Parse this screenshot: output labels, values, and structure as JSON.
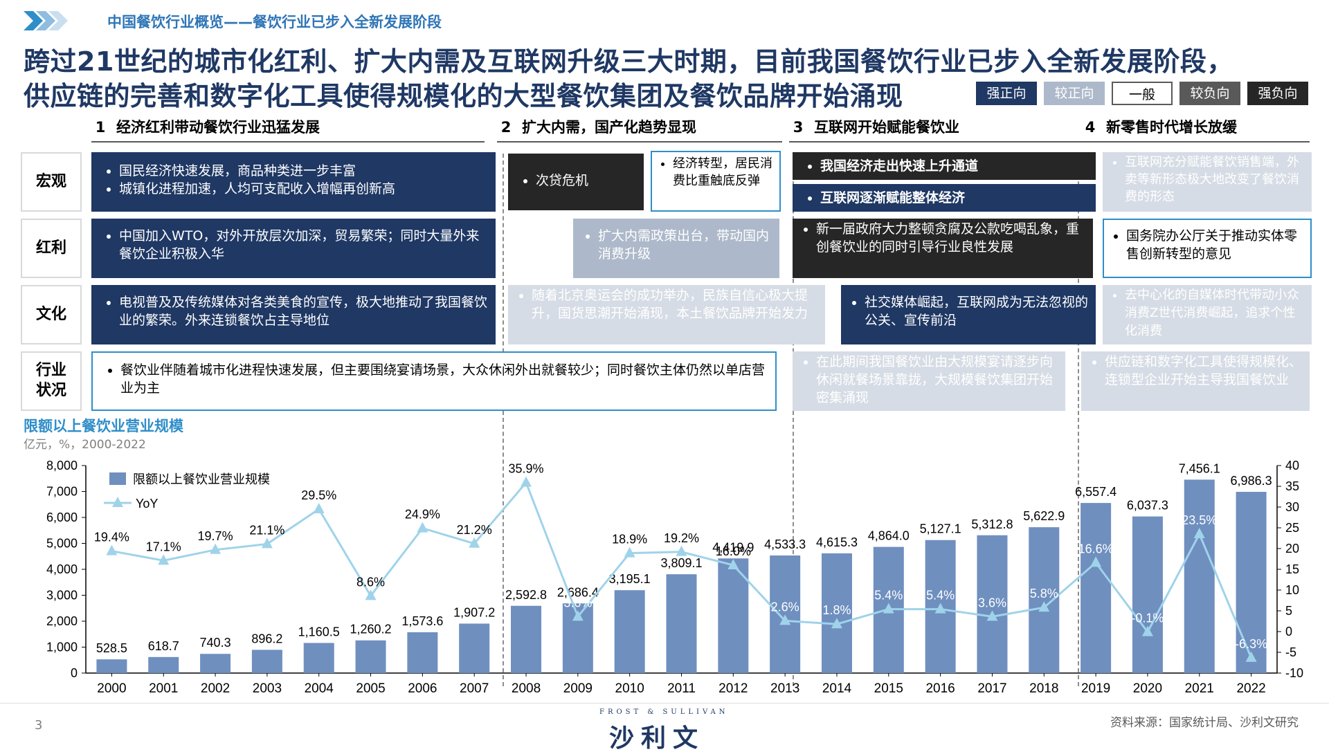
{
  "header": {
    "section_title": "中国餐饮行业概览——餐饮行业已步入全新发展阶段",
    "headline_line1": "跨过21世纪的城市化红利、扩大内需及互联网升级三大时期，目前我国餐饮行业已步入全新发展阶段，",
    "headline_line2": "供应链的完善和数字化工具使得规模化的大型餐饮集团及餐饮品牌开始涌现"
  },
  "legend_scale": [
    {
      "label": "强正向",
      "color": "#1f3864"
    },
    {
      "label": "较正向",
      "color": "#adb9ca"
    },
    {
      "label": "一般",
      "color": "#ffffff"
    },
    {
      "label": "较负向",
      "color": "#595959"
    },
    {
      "label": "强负向",
      "color": "#262626"
    }
  ],
  "periods": [
    {
      "num": "1",
      "label": "经济红利带动餐饮行业迅猛发展"
    },
    {
      "num": "2",
      "label": "扩大内需，国产化趋势显现"
    },
    {
      "num": "3",
      "label": "互联网开始赋能餐饮业"
    },
    {
      "num": "4",
      "label": "新零售时代增长放缓"
    }
  ],
  "row_labels": [
    "宏观",
    "红利",
    "文化",
    "行业\n状况"
  ],
  "cells": {
    "macro_p1_a": "国民经济快速发展，商品种类进一步丰富",
    "macro_p1_b": "城镇化进程加速，人均可支配收入增幅再创新高",
    "macro_p2_a": "次贷危机",
    "macro_p2_b": "经济转型，居民消费比重触底反弹",
    "macro_p3_a": "我国经济走出快速上升通道",
    "macro_p3_b": "互联网逐渐赋能整体经济",
    "macro_p4": "互联网充分赋能餐饮销售端，外卖等新形态极大地改变了餐饮消费的形态",
    "bonus_p1": "中国加入WTO，对外开放层次加深，贸易繁荣；同时大量外来餐饮企业积极入华",
    "bonus_p2": "扩大内需政策出台，带动国内消费升级",
    "bonus_p3": "新一届政府大力整顿贪腐及公款吃喝乱象，重创餐饮业的同时引导行业良性发展",
    "bonus_p4": "国务院办公厅关于推动实体零售创新转型的意见",
    "culture_p1": "电视普及及传统媒体对各类美食的宣传，极大地推动了我国餐饮业的繁荣。外来连锁餐饮占主导地位",
    "culture_p2": "随着北京奥运会的成功举办，民族自信心极大提升，国货思潮开始涌现，本土餐饮品牌开始发力",
    "culture_p3": "社交媒体崛起，互联网成为无法忽视的公关、宣传前沿",
    "culture_p4": "去中心化的自媒体时代带动小众消费Z世代消费崛起，追求个性化消费",
    "industry_p12": "餐饮业伴随着城市化进程快速发展，但主要围绕宴请场景，大众休闲外出就餐较少；同时餐饮主体仍然以单店营业为主",
    "industry_p3": "在此期间我国餐饮业由大规模宴请逐步向休闲就餐场景靠拢，大规模餐饮集团开始密集涌现",
    "industry_p4": "供应链和数字化工具使得规模化、连锁型企业开始主导我国餐饮业"
  },
  "chart_header": {
    "title": "限额以上餐饮业营业规模",
    "subtitle": "亿元，%，2000-2022"
  },
  "colors": {
    "bar": "#6f8fbf",
    "line": "#9fd3ea",
    "navy": "#1f3864",
    "accent": "#2e8ec9"
  },
  "chart_data": {
    "type": "bar",
    "categories": [
      "2000",
      "2001",
      "2002",
      "2003",
      "2004",
      "2005",
      "2006",
      "2007",
      "2008",
      "2009",
      "2010",
      "2011",
      "2012",
      "2013",
      "2014",
      "2015",
      "2016",
      "2017",
      "2018",
      "2019",
      "2020",
      "2021",
      "2022"
    ],
    "series": [
      {
        "name": "限额以上餐饮业营业规模",
        "type": "bar",
        "axis": "left",
        "values": [
          528.5,
          618.7,
          740.3,
          896.2,
          1160.5,
          1260.2,
          1573.6,
          1907.2,
          2592.8,
          2686.4,
          3195.1,
          3809.1,
          4419.9,
          4533.3,
          4615.3,
          4864.0,
          5127.1,
          5312.8,
          5622.9,
          6557.4,
          6037.3,
          7456.1,
          6986.3
        ],
        "labels": [
          "528.5",
          "618.7",
          "740.3",
          "896.2",
          "1,160.5",
          "1,260.2",
          "1,573.6",
          "1,907.2",
          "2,592.8",
          "2,686.4",
          "3,195.1",
          "3,809.1",
          "4,419.9",
          "4,533.3",
          "4,615.3",
          "4,864.0",
          "5,127.1",
          "5,312.8",
          "5,622.9",
          "6,557.4",
          "6,037.3",
          "7,456.1",
          "6,986.3"
        ]
      },
      {
        "name": "YoY",
        "type": "line",
        "axis": "right",
        "values": [
          19.4,
          17.1,
          19.7,
          21.1,
          29.5,
          8.6,
          24.9,
          21.2,
          35.9,
          3.6,
          18.9,
          19.2,
          16.0,
          2.6,
          1.8,
          5.4,
          5.4,
          3.6,
          5.8,
          16.6,
          -0.1,
          23.5,
          -6.3
        ],
        "labels": [
          "19.4%",
          "17.1%",
          "19.7%",
          "21.1%",
          "29.5%",
          "8.6%",
          "24.9%",
          "21.2%",
          "35.9%",
          "3.6%",
          "18.9%",
          "19.2%",
          "16.0%",
          "2.6%",
          "1.8%",
          "5.4%",
          "5.4%",
          "3.6%",
          "5.8%",
          "16.6%",
          "-0.1%",
          "23.5%",
          "-6.3%"
        ]
      }
    ],
    "y_left": {
      "lim": [
        0,
        8000
      ],
      "ticks": [
        "0",
        "1,000",
        "2,000",
        "3,000",
        "4,000",
        "5,000",
        "6,000",
        "7,000",
        "8,000"
      ]
    },
    "y_right": {
      "lim": [
        -10,
        40
      ],
      "ticks": [
        "-10",
        "-5",
        "0",
        "5",
        "10",
        "15",
        "20",
        "25",
        "30",
        "35",
        "40"
      ]
    },
    "legend": [
      "限额以上餐饮业营业规模",
      "YoY"
    ],
    "grid": false
  },
  "footer": {
    "page_number": "3",
    "logo_top": "FROST & SULLIVAN",
    "logo_main": "沙利文",
    "source": "资料来源：国家统计局、沙利文研究"
  }
}
